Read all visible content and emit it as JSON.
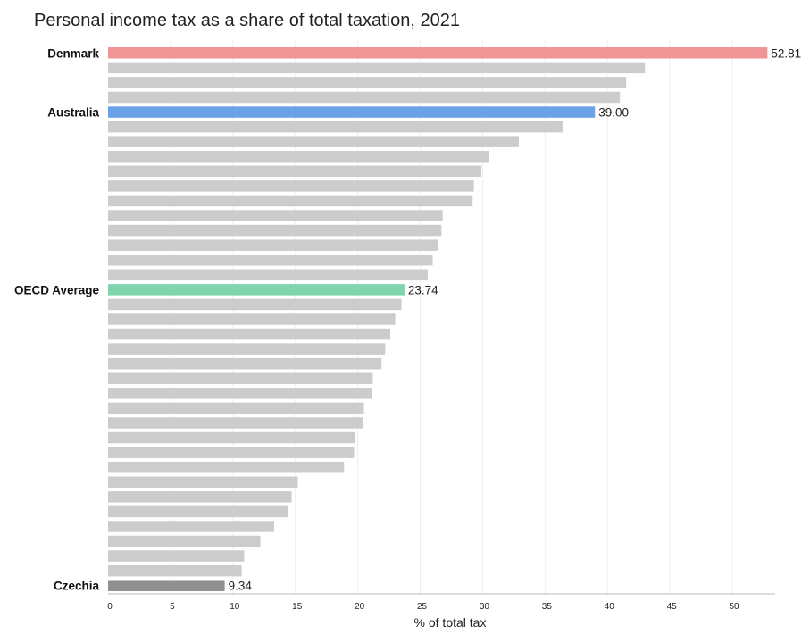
{
  "chart_data": {
    "type": "bar",
    "orientation": "horizontal",
    "title": "Personal income tax as a share of total taxation, 2021",
    "xlabel": "% of total tax",
    "ylabel": "",
    "xlim": [
      0,
      53
    ],
    "xticks": [
      0,
      5,
      10,
      15,
      20,
      25,
      30,
      35,
      40,
      45,
      50
    ],
    "grid": "vertical",
    "colors": {
      "default": "#cccccc",
      "Denmark": "#f09595",
      "Australia": "#6aa2ea",
      "OECD Average": "#7fd6ad",
      "Czechia": "#909090"
    },
    "categories": [
      "Denmark",
      "",
      "",
      "",
      "Australia",
      "",
      "",
      "",
      "",
      "",
      "",
      "",
      "",
      "",
      "",
      "",
      "OECD Average",
      "",
      "",
      "",
      "",
      "",
      "",
      "",
      "",
      "",
      "",
      "",
      "",
      "",
      "",
      "",
      "",
      "",
      "",
      "",
      "Czechia"
    ],
    "values": [
      52.81,
      43.0,
      41.5,
      41.0,
      39.0,
      36.4,
      32.9,
      30.5,
      29.9,
      29.3,
      29.2,
      26.8,
      26.7,
      26.4,
      26.0,
      25.6,
      23.74,
      23.5,
      23.0,
      22.6,
      22.2,
      21.9,
      21.2,
      21.1,
      20.5,
      20.4,
      19.8,
      19.7,
      18.9,
      15.2,
      14.7,
      14.4,
      13.3,
      12.2,
      10.9,
      10.7,
      9.34
    ],
    "data_labels": {
      "Denmark": "52.81",
      "Australia": "39.00",
      "OECD Average": "23.74",
      "Czechia": "9.34"
    }
  }
}
